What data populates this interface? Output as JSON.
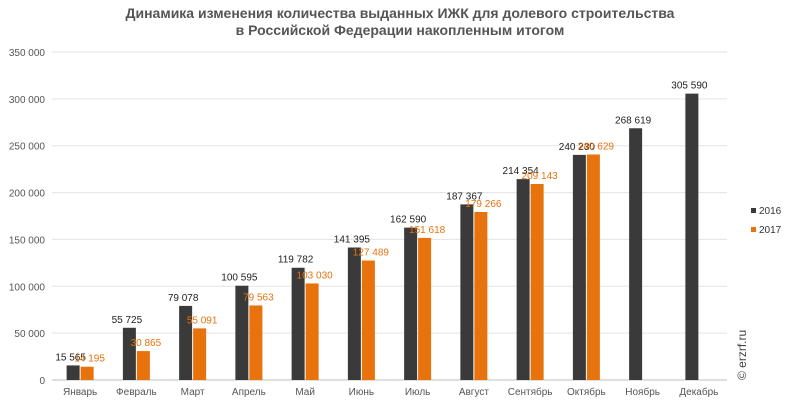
{
  "chart_data": {
    "type": "bar",
    "title_lines": [
      "Динамика изменения количества выданных ИЖК для долевого строительства",
      "в Российской Федерации накопленным итогом"
    ],
    "categories": [
      "Январь",
      "Февраль",
      "Март",
      "Апрель",
      "Май",
      "Июнь",
      "Июль",
      "Август",
      "Сентябрь",
      "Октябрь",
      "Ноябрь",
      "Декабрь"
    ],
    "series": [
      {
        "name": "2016",
        "color": "#3a3a3a",
        "values": [
          15565,
          55725,
          79078,
          100595,
          119782,
          141395,
          162590,
          187367,
          214354,
          240230,
          268619,
          305590
        ],
        "labels": [
          "15 565",
          "55 725",
          "79 078",
          "100 595",
          "119 782",
          "141 395",
          "162 590",
          "187 367",
          "214 354",
          "240 230",
          "268 619",
          "305 590"
        ]
      },
      {
        "name": "2017",
        "color": "#e8720c",
        "values": [
          14195,
          30865,
          55091,
          79563,
          103030,
          127489,
          151618,
          179266,
          209143,
          240629,
          null,
          null
        ],
        "labels": [
          "14 195",
          "30 865",
          "55 091",
          "79 563",
          "103 030",
          "127 489",
          "151 618",
          "179 266",
          "209 143",
          "240 629",
          "",
          ""
        ]
      }
    ],
    "ylim": [
      0,
      350000
    ],
    "yticks": [
      0,
      50000,
      100000,
      150000,
      200000,
      250000,
      300000,
      350000
    ],
    "ytick_labels": [
      "0",
      "50 000",
      "100 000",
      "150 000",
      "200 000",
      "250 000",
      "300 000",
      "350 000"
    ],
    "grid": true,
    "legend_position": "right"
  },
  "watermark": "© erzrf.ru"
}
